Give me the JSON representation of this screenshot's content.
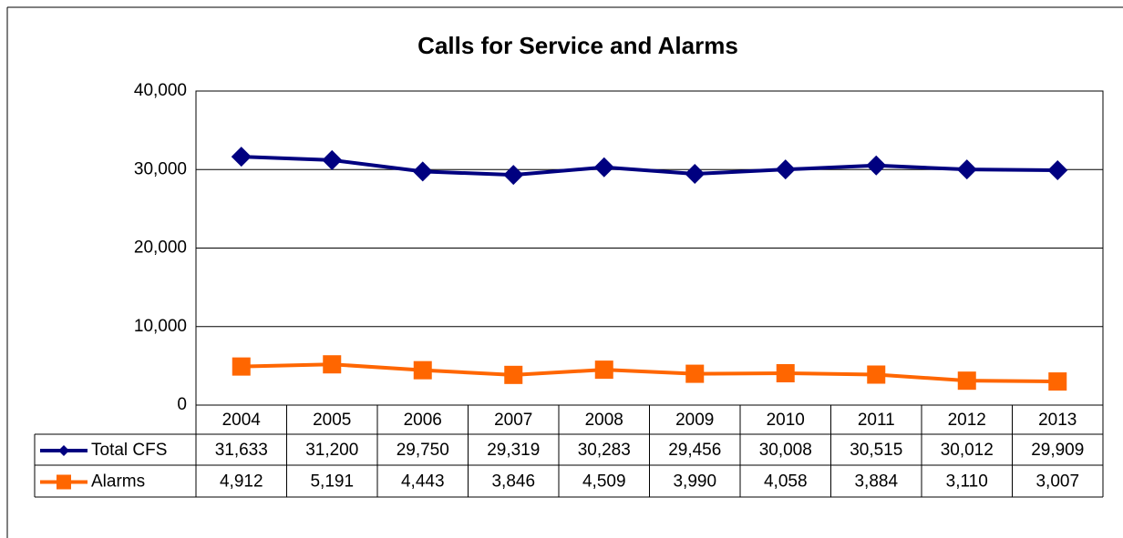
{
  "chart_data": {
    "type": "line",
    "title": "Calls for Service and Alarms",
    "categories": [
      "2004",
      "2005",
      "2006",
      "2007",
      "2008",
      "2009",
      "2010",
      "2011",
      "2012",
      "2013"
    ],
    "series": [
      {
        "name": "Total CFS",
        "color": "#000080",
        "marker": "diamond",
        "values": [
          31633,
          31200,
          29750,
          29319,
          30283,
          29456,
          30008,
          30515,
          30012,
          29909
        ],
        "value_labels": [
          "31,633",
          "31,200",
          "29,750",
          "29,319",
          "30,283",
          "29,456",
          "30,008",
          "30,515",
          "30,012",
          "29,909"
        ]
      },
      {
        "name": "Alarms",
        "color": "#ff6600",
        "marker": "square",
        "values": [
          4912,
          5191,
          4443,
          3846,
          4509,
          3990,
          4058,
          3884,
          3110,
          3007
        ],
        "value_labels": [
          "4,912",
          "5,191",
          "4,443",
          "3,846",
          "4,509",
          "3,990",
          "4,058",
          "3,884",
          "3,110",
          "3,007"
        ]
      }
    ],
    "ylim": [
      0,
      40000
    ],
    "yticks": [
      0,
      {
        "value": 10000,
        "label": "10,000"
      },
      {
        "value": 20000,
        "label": "20,000"
      },
      {
        "value": 30000,
        "label": "30,000"
      },
      {
        "value": 40000,
        "label": "40,000"
      }
    ],
    "grid": true
  }
}
